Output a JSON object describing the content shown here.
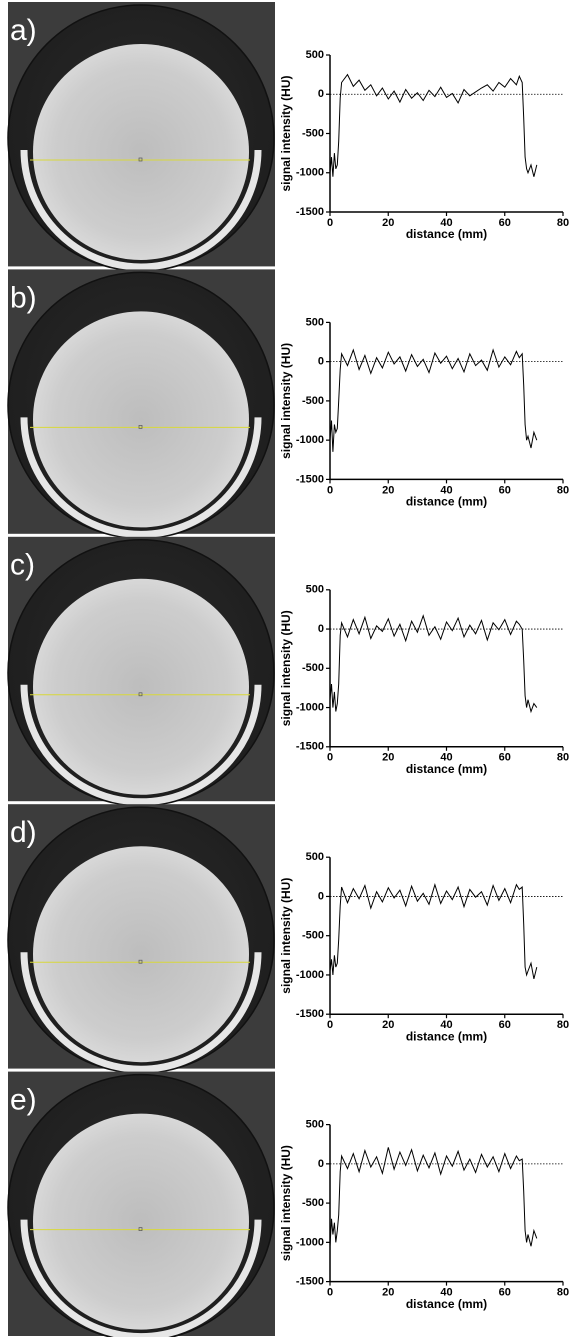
{
  "chart_data": [
    {
      "type": "line",
      "label": "a)",
      "xlabel": "distance (mm)",
      "ylabel": "signal intensity (HU)",
      "color": "#000000",
      "reference_line": 0,
      "xlim": [
        0,
        80
      ],
      "ylim": [
        -1500,
        500
      ],
      "xticks": [
        0,
        20,
        40,
        60,
        80
      ],
      "yticks": [
        -1500,
        -1000,
        -500,
        0,
        500
      ],
      "x": [
        0,
        0.5,
        1,
        1.5,
        2,
        2.5,
        3,
        3.5,
        4,
        6,
        8,
        10,
        12,
        14,
        16,
        18,
        20,
        22,
        24,
        26,
        28,
        30,
        32,
        34,
        36,
        38,
        40,
        42,
        44,
        46,
        48,
        50,
        52,
        54,
        56,
        58,
        60,
        62,
        64,
        65,
        66,
        66.5,
        67,
        67.5,
        68,
        69,
        70,
        71
      ],
      "values": [
        -1000,
        -800,
        -1050,
        -750,
        -950,
        -900,
        -600,
        -50,
        150,
        250,
        100,
        180,
        50,
        120,
        -20,
        80,
        -60,
        40,
        -100,
        60,
        -50,
        20,
        -80,
        50,
        -30,
        90,
        -40,
        10,
        -110,
        60,
        -20,
        30,
        80,
        120,
        40,
        150,
        90,
        200,
        120,
        230,
        150,
        -300,
        -800,
        -950,
        -1000,
        -900,
        -1050,
        -900
      ]
    },
    {
      "type": "line",
      "label": "b)",
      "xlabel": "distance (mm)",
      "ylabel": "signal intensity (HU)",
      "color": "#000000",
      "reference_line": 0,
      "xlim": [
        0,
        80
      ],
      "ylim": [
        -1500,
        500
      ],
      "xticks": [
        0,
        20,
        40,
        60,
        80
      ],
      "yticks": [
        -1500,
        -1000,
        -500,
        0,
        500
      ],
      "x": [
        0,
        0.5,
        1,
        1.5,
        2,
        2.5,
        3,
        3.5,
        4,
        6,
        8,
        10,
        12,
        14,
        16,
        18,
        20,
        22,
        24,
        26,
        28,
        30,
        32,
        34,
        36,
        38,
        40,
        42,
        44,
        46,
        48,
        50,
        52,
        54,
        56,
        58,
        60,
        62,
        64,
        65,
        66,
        66.5,
        67,
        67.5,
        68,
        69,
        70,
        71
      ],
      "values": [
        -1000,
        -750,
        -1150,
        -800,
        -900,
        -850,
        -500,
        -100,
        100,
        -50,
        150,
        -100,
        80,
        -150,
        50,
        -80,
        120,
        -30,
        60,
        -120,
        90,
        -60,
        30,
        -140,
        110,
        -20,
        70,
        -90,
        40,
        -130,
        100,
        -50,
        20,
        -110,
        150,
        -70,
        60,
        -40,
        130,
        50,
        100,
        -300,
        -800,
        -1000,
        -950,
        -1100,
        -900,
        -1000
      ]
    },
    {
      "type": "line",
      "label": "c)",
      "xlabel": "distance (mm)",
      "ylabel": "signal intensity (HU)",
      "color": "#000000",
      "reference_line": 0,
      "xlim": [
        0,
        80
      ],
      "ylim": [
        -1500,
        500
      ],
      "xticks": [
        0,
        20,
        40,
        60,
        80
      ],
      "yticks": [
        -1500,
        -1000,
        -500,
        0,
        500
      ],
      "x": [
        0,
        0.5,
        1,
        1.5,
        2,
        2.5,
        3,
        3.5,
        4,
        6,
        8,
        10,
        12,
        14,
        16,
        18,
        20,
        22,
        24,
        26,
        28,
        30,
        32,
        34,
        36,
        38,
        40,
        42,
        44,
        46,
        48,
        50,
        52,
        54,
        56,
        58,
        60,
        62,
        64,
        65,
        66,
        66.5,
        67,
        67.5,
        68,
        69,
        70,
        71
      ],
      "values": [
        -900,
        -700,
        -1000,
        -800,
        -1050,
        -950,
        -700,
        -80,
        80,
        -100,
        120,
        -60,
        150,
        -120,
        40,
        -30,
        130,
        -90,
        60,
        -150,
        100,
        -40,
        170,
        -80,
        30,
        -130,
        90,
        -20,
        140,
        -100,
        50,
        -60,
        110,
        -140,
        80,
        -10,
        120,
        -70,
        100,
        60,
        0,
        -400,
        -850,
        -1000,
        -900,
        -1050,
        -950,
        -1000
      ]
    },
    {
      "type": "line",
      "label": "d)",
      "xlabel": "distance (mm)",
      "ylabel": "signal intensity (HU)",
      "color": "#000000",
      "reference_line": 0,
      "xlim": [
        0,
        80
      ],
      "ylim": [
        -1500,
        500
      ],
      "xticks": [
        0,
        20,
        40,
        60,
        80
      ],
      "yticks": [
        -1500,
        -1000,
        -500,
        0,
        500
      ],
      "x": [
        0,
        0.5,
        1,
        1.5,
        2,
        2.5,
        3,
        3.5,
        4,
        6,
        8,
        10,
        12,
        14,
        16,
        18,
        20,
        22,
        24,
        26,
        28,
        30,
        32,
        34,
        36,
        38,
        40,
        42,
        44,
        46,
        48,
        50,
        52,
        54,
        56,
        58,
        60,
        62,
        64,
        65,
        66,
        66.5,
        67,
        67.5,
        68,
        69,
        70,
        71
      ],
      "values": [
        -950,
        -800,
        -1000,
        -750,
        -900,
        -850,
        -550,
        -120,
        120,
        -80,
        100,
        -30,
        140,
        -150,
        60,
        -70,
        110,
        -20,
        80,
        -120,
        130,
        -60,
        40,
        -100,
        150,
        -90,
        70,
        -40,
        120,
        -130,
        90,
        -10,
        60,
        -110,
        140,
        -50,
        100,
        -80,
        150,
        90,
        120,
        -350,
        -900,
        -1000,
        -950,
        -850,
        -1050,
        -900
      ]
    },
    {
      "type": "line",
      "label": "e)",
      "xlabel": "distance (mm)",
      "ylabel": "signal intensity (HU)",
      "color": "#000000",
      "reference_line": 0,
      "xlim": [
        0,
        80
      ],
      "ylim": [
        -1500,
        500
      ],
      "xticks": [
        0,
        20,
        40,
        60,
        80
      ],
      "yticks": [
        -1500,
        -1000,
        -500,
        0,
        500
      ],
      "x": [
        0,
        0.5,
        1,
        1.5,
        2,
        2.5,
        3,
        3.5,
        4,
        6,
        8,
        10,
        12,
        14,
        16,
        18,
        20,
        22,
        24,
        26,
        28,
        30,
        32,
        34,
        36,
        38,
        40,
        42,
        44,
        46,
        48,
        50,
        52,
        54,
        56,
        58,
        60,
        62,
        64,
        65,
        66,
        66.5,
        67,
        67.5,
        68,
        69,
        70,
        71
      ],
      "values": [
        -1050,
        -700,
        -900,
        -750,
        -1000,
        -850,
        -650,
        -100,
        100,
        -60,
        130,
        -100,
        170,
        -40,
        90,
        -120,
        210,
        -70,
        150,
        -20,
        180,
        -90,
        110,
        -50,
        140,
        -130,
        100,
        -30,
        160,
        -80,
        60,
        -110,
        120,
        -40,
        90,
        -100,
        130,
        -60,
        100,
        40,
        60,
        -350,
        -850,
        -1000,
        -900,
        -1050,
        -850,
        -950
      ]
    }
  ]
}
